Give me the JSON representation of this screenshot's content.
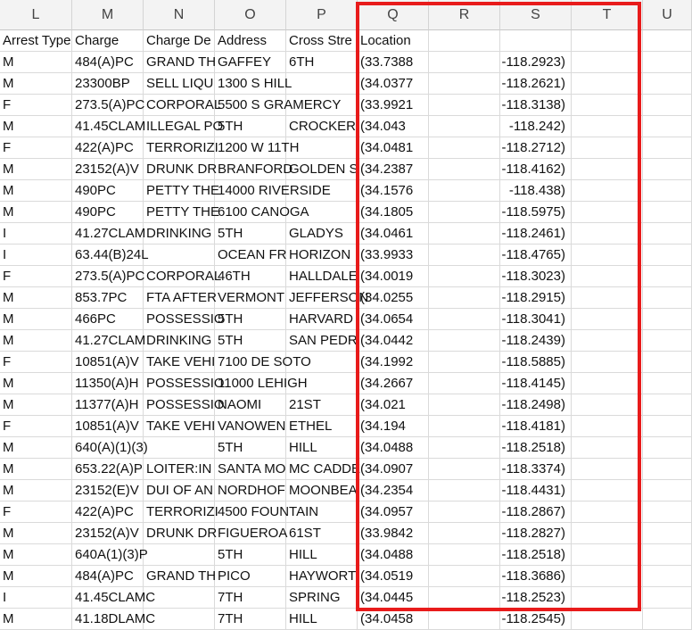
{
  "columns": [
    "L",
    "M",
    "N",
    "O",
    "P",
    "Q",
    "R",
    "S",
    "T",
    "U"
  ],
  "headers": [
    "Arrest Type",
    "Charge",
    "Charge De",
    "Address",
    "Cross Stre",
    "Location",
    "",
    "",
    "",
    ""
  ],
  "rows": [
    [
      "M",
      "484(A)PC",
      "GRAND TH",
      "GAFFEY",
      "6TH",
      "(33.7388",
      "",
      "-118.2923)",
      "",
      ""
    ],
    [
      "M",
      "23300BP",
      "SELL LIQU",
      "1300 S  HILL",
      "",
      "(34.0377",
      "",
      "-118.2621)",
      "",
      ""
    ],
    [
      "F",
      "273.5(A)PC",
      "CORPORAL",
      "5500 S  GRAMERCY",
      "",
      "(33.9921",
      "",
      "-118.3138)",
      "",
      ""
    ],
    [
      "M",
      "41.45CLAM",
      "ILLEGAL PO",
      "5TH",
      "CROCKER",
      "(34.043",
      "",
      "-118.242)",
      "",
      ""
    ],
    [
      "F",
      "422(A)PC",
      "TERRORIZI",
      "1200 W  11TH",
      "",
      "(34.0481",
      "",
      "-118.2712)",
      "",
      ""
    ],
    [
      "M",
      "23152(A)V",
      "DRUNK DR",
      "BRANFORD",
      "GOLDEN S",
      "(34.2387",
      "",
      "-118.4162)",
      "",
      ""
    ],
    [
      "M",
      "490PC",
      "PETTY THE",
      "14000    RIVERSIDE",
      "",
      "(34.1576",
      "",
      "-118.438)",
      "",
      ""
    ],
    [
      "M",
      "490PC",
      "PETTY THE",
      "6100    CANOGA",
      "",
      "(34.1805",
      "",
      "-118.5975)",
      "",
      ""
    ],
    [
      "I",
      "41.27CLAM",
      "DRINKING",
      "5TH",
      "GLADYS",
      "(34.0461",
      "",
      "-118.2461)",
      "",
      ""
    ],
    [
      "I",
      "63.44(B)24L",
      "",
      "OCEAN FR",
      "HORIZON",
      "(33.9933",
      "",
      "-118.4765)",
      "",
      ""
    ],
    [
      "F",
      "273.5(A)PC",
      "CORPORAL",
      "46TH",
      "HALLDALE",
      "(34.0019",
      "",
      "-118.3023)",
      "",
      ""
    ],
    [
      "M",
      "853.7PC",
      "FTA AFTER",
      "VERMONT",
      "JEFFERSON",
      "(34.0255",
      "",
      "-118.2915)",
      "",
      ""
    ],
    [
      "M",
      "466PC",
      "POSSESSIO",
      "5TH",
      "HARVARD",
      "(34.0654",
      "",
      "-118.3041)",
      "",
      ""
    ],
    [
      "M",
      "41.27CLAM",
      "DRINKING",
      "5TH",
      "SAN PEDR",
      "(34.0442",
      "",
      "-118.2439)",
      "",
      ""
    ],
    [
      "F",
      "10851(A)V",
      "TAKE VEHI",
      "7100    DE SOTO",
      "",
      "(34.1992",
      "",
      "-118.5885)",
      "",
      ""
    ],
    [
      "M",
      "11350(A)H",
      "POSSESSIO",
      "11000    LEHIGH",
      "",
      "(34.2667",
      "",
      "-118.4145)",
      "",
      ""
    ],
    [
      "M",
      "11377(A)H",
      "POSSESSIO",
      "NAOMI",
      "21ST",
      "(34.021",
      "",
      "-118.2498)",
      "",
      ""
    ],
    [
      "F",
      "10851(A)V",
      "TAKE VEHI",
      "VANOWEN",
      "ETHEL",
      "(34.194",
      "",
      "-118.4181)",
      "",
      ""
    ],
    [
      "M",
      "640(A)(1)(3)",
      "",
      "5TH",
      "HILL",
      "(34.0488",
      "",
      "-118.2518)",
      "",
      ""
    ],
    [
      "M",
      "653.22(A)P",
      "LOITER:IN",
      "SANTA MO",
      "MC CADDE",
      "(34.0907",
      "",
      "-118.3374)",
      "",
      ""
    ],
    [
      "M",
      "23152(E)V",
      "DUI OF AN",
      "NORDHOF",
      "MOONBEA",
      "(34.2354",
      "",
      "-118.4431)",
      "",
      ""
    ],
    [
      "F",
      "422(A)PC",
      "TERRORIZI",
      "4500    FOUNTAIN",
      "",
      "(34.0957",
      "",
      "-118.2867)",
      "",
      ""
    ],
    [
      "M",
      "23152(A)V",
      "DRUNK DR",
      "FIGUEROA",
      "61ST",
      "(33.9842",
      "",
      "-118.2827)",
      "",
      ""
    ],
    [
      "M",
      "640A(1)(3)P",
      "",
      "5TH",
      "HILL",
      "(34.0488",
      "",
      "-118.2518)",
      "",
      ""
    ],
    [
      "M",
      "484(A)PC",
      "GRAND TH",
      "PICO",
      "HAYWORT",
      "(34.0519",
      "",
      "-118.3686)",
      "",
      ""
    ],
    [
      "I",
      "41.45CLAMC",
      "",
      "7TH",
      "SPRING",
      "(34.0445",
      "",
      "-118.2523)",
      "",
      ""
    ],
    [
      "M",
      "41.18DLAMC",
      "",
      "7TH",
      "HILL",
      "(34.0458",
      "",
      "-118.2545)",
      "",
      ""
    ]
  ]
}
